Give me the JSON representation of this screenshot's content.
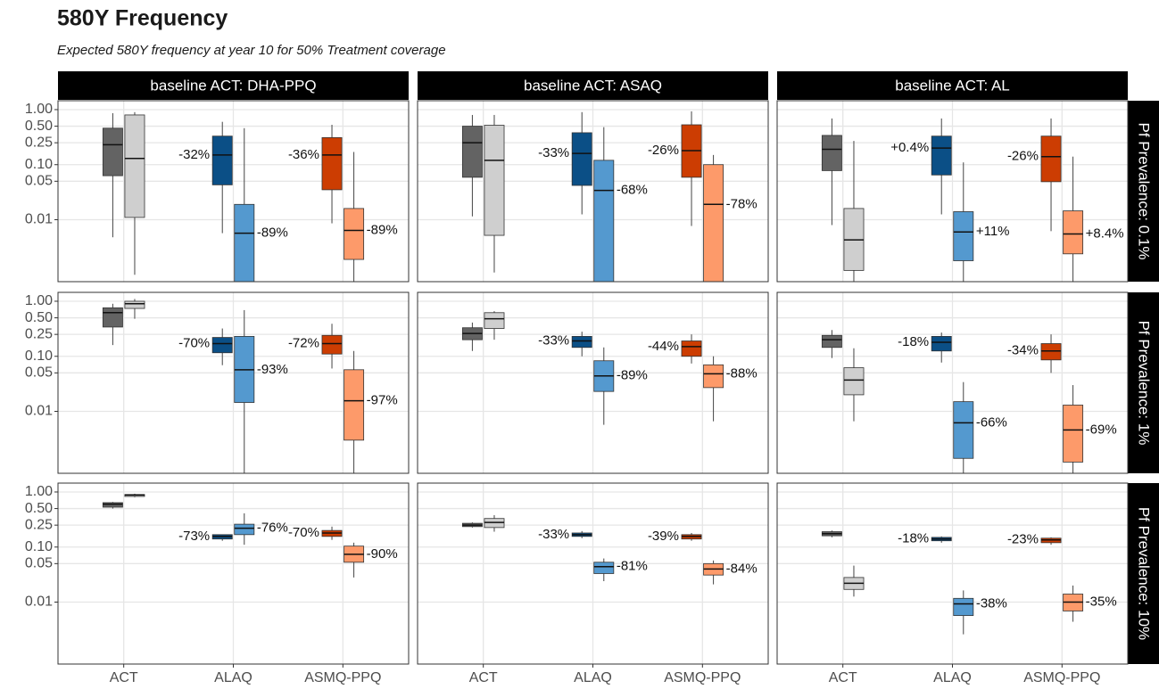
{
  "chart_data": {
    "type": "box",
    "title": "580Y Frequency",
    "subtitle": "Expected 580Y frequency at year 10 for 50% Treatment coverage",
    "column_facets": [
      "baseline ACT: DHA-PPQ",
      "baseline ACT: ASAQ",
      "baseline ACT: AL"
    ],
    "row_facets": [
      "Pf Prevalence: 0.1%",
      "Pf Prevalence: 1%",
      "Pf Prevalence: 10%"
    ],
    "categories": [
      "ACT",
      "ALAQ",
      "ASMQ-PPQ"
    ],
    "colors": [
      [
        "#636363",
        "#cfcfcf"
      ],
      [
        "#0b4f86",
        "#5499cf"
      ],
      [
        "#cc3d02",
        "#fd9a6a"
      ]
    ],
    "yscale": "log",
    "ylim": [
      0.00075,
      1.45
    ],
    "yticks": [
      {
        "value": 1,
        "label": "1.00"
      },
      {
        "value": 0.5,
        "label": "0.50"
      },
      0.25,
      {
        "value": 0.1,
        "label": "0.10"
      },
      0.05,
      0.01
    ],
    "grid": true,
    "panels": [
      [
        {
          "low": 0.0048,
          "q1": 0.063,
          "median": 0.23,
          "q3": 0.46,
          "high": 0.86
        },
        {
          "low": 0.001,
          "q1": 0.011,
          "median": 0.13,
          "q3": 0.8,
          "high": 0.9
        },
        {
          "low": 0.0057,
          "q1": 0.043,
          "median": 0.15,
          "q3": 0.33,
          "high": 0.6,
          "label": "-32%"
        },
        {
          "low": 0.0003,
          "q1": 0.0005,
          "median": 0.0057,
          "q3": 0.019,
          "high": 0.46,
          "label": "-89%"
        },
        {
          "low": 0.0086,
          "q1": 0.035,
          "median": 0.15,
          "q3": 0.31,
          "high": 0.53,
          "label": "-36%"
        },
        {
          "low": 0.0005,
          "q1": 0.0019,
          "median": 0.0064,
          "q3": 0.016,
          "high": 0.17,
          "label": "-89%"
        }
      ],
      [
        {
          "low": 0.0115,
          "q1": 0.059,
          "median": 0.25,
          "q3": 0.5,
          "high": 0.8
        },
        {
          "low": 0.0011,
          "q1": 0.0052,
          "median": 0.12,
          "q3": 0.52,
          "high": 0.8
        },
        {
          "low": 0.0125,
          "q1": 0.042,
          "median": 0.16,
          "q3": 0.38,
          "high": 0.9,
          "label": "-33%"
        },
        {
          "low": 0.0003,
          "q1": 0.0005,
          "median": 0.034,
          "q3": 0.12,
          "high": 0.48,
          "label": "-68%"
        },
        {
          "low": 0.0077,
          "q1": 0.059,
          "median": 0.18,
          "q3": 0.53,
          "high": 0.93,
          "label": "-26%"
        },
        {
          "low": 0.0003,
          "q1": 0.0005,
          "median": 0.019,
          "q3": 0.1,
          "high": 0.15,
          "label": "-78%"
        }
      ],
      [
        {
          "low": 0.008,
          "q1": 0.078,
          "median": 0.19,
          "q3": 0.34,
          "high": 0.69
        },
        {
          "low": 0.0005,
          "q1": 0.0012,
          "median": 0.0043,
          "q3": 0.016,
          "high": 0.27
        },
        {
          "low": 0.0125,
          "q1": 0.065,
          "median": 0.2,
          "q3": 0.33,
          "high": 0.69,
          "label": "+0.4%"
        },
        {
          "low": 0.0005,
          "q1": 0.0018,
          "median": 0.006,
          "q3": 0.014,
          "high": 0.11,
          "label": "+11%"
        },
        {
          "low": 0.0062,
          "q1": 0.049,
          "median": 0.14,
          "q3": 0.33,
          "high": 0.69,
          "label": "-26%"
        },
        {
          "low": 0.0005,
          "q1": 0.0024,
          "median": 0.0055,
          "q3": 0.0145,
          "high": 0.14,
          "label": "+8.4%"
        }
      ],
      [
        {
          "low": 0.16,
          "q1": 0.34,
          "median": 0.62,
          "q3": 0.76,
          "high": 0.9
        },
        {
          "low": 0.48,
          "q1": 0.74,
          "median": 0.9,
          "q3": 1.0,
          "high": 1.1
        },
        {
          "low": 0.069,
          "q1": 0.116,
          "median": 0.17,
          "q3": 0.22,
          "high": 0.32,
          "label": "-70%"
        },
        {
          "low": 0.0005,
          "q1": 0.0145,
          "median": 0.057,
          "q3": 0.23,
          "high": 0.69,
          "label": "-93%"
        },
        {
          "low": 0.06,
          "q1": 0.11,
          "median": 0.17,
          "q3": 0.24,
          "high": 0.39,
          "label": "-72%"
        },
        {
          "low": 0.0005,
          "q1": 0.003,
          "median": 0.0156,
          "q3": 0.057,
          "high": 0.125,
          "label": "-97%"
        }
      ],
      [
        {
          "low": 0.125,
          "q1": 0.2,
          "median": 0.26,
          "q3": 0.33,
          "high": 0.41
        },
        {
          "low": 0.2,
          "q1": 0.32,
          "median": 0.48,
          "q3": 0.62,
          "high": 0.66
        },
        {
          "low": 0.1,
          "q1": 0.145,
          "median": 0.19,
          "q3": 0.23,
          "high": 0.28,
          "label": "-33%"
        },
        {
          "low": 0.0057,
          "q1": 0.023,
          "median": 0.044,
          "q3": 0.083,
          "high": 0.145,
          "label": "-89%"
        },
        {
          "low": 0.074,
          "q1": 0.1,
          "median": 0.15,
          "q3": 0.19,
          "high": 0.25,
          "label": "-44%"
        },
        {
          "low": 0.0066,
          "q1": 0.027,
          "median": 0.048,
          "q3": 0.07,
          "high": 0.1,
          "label": "-88%"
        }
      ],
      [
        {
          "low": 0.093,
          "q1": 0.145,
          "median": 0.2,
          "q3": 0.24,
          "high": 0.3
        },
        {
          "low": 0.0066,
          "q1": 0.02,
          "median": 0.037,
          "q3": 0.062,
          "high": 0.14
        },
        {
          "low": 0.077,
          "q1": 0.125,
          "median": 0.18,
          "q3": 0.23,
          "high": 0.27,
          "label": "-18%"
        },
        {
          "low": 0.0005,
          "q1": 0.0014,
          "median": 0.0062,
          "q3": 0.015,
          "high": 0.034,
          "label": "-66%"
        },
        {
          "low": 0.05,
          "q1": 0.086,
          "median": 0.125,
          "q3": 0.17,
          "high": 0.25,
          "label": "-34%"
        },
        {
          "low": 0.0005,
          "q1": 0.0012,
          "median": 0.0046,
          "q3": 0.013,
          "high": 0.03,
          "label": "-69%"
        }
      ],
      [
        {
          "low": 0.5,
          "q1": 0.53,
          "median": 0.6,
          "q3": 0.64,
          "high": 0.66
        },
        {
          "low": 0.8,
          "q1": 0.83,
          "median": 0.88,
          "q3": 0.9,
          "high": 0.93
        },
        {
          "low": 0.13,
          "q1": 0.14,
          "median": 0.156,
          "q3": 0.168,
          "high": 0.17,
          "label": "-73%"
        },
        {
          "low": 0.11,
          "q1": 0.168,
          "median": 0.22,
          "q3": 0.26,
          "high": 0.41,
          "label": "-76%"
        },
        {
          "low": 0.135,
          "q1": 0.156,
          "median": 0.18,
          "q3": 0.2,
          "high": 0.235,
          "label": "-70%"
        },
        {
          "low": 0.028,
          "q1": 0.053,
          "median": 0.074,
          "q3": 0.104,
          "high": 0.12,
          "label": "-90%"
        }
      ],
      [
        {
          "low": 0.226,
          "q1": 0.235,
          "median": 0.25,
          "q3": 0.27,
          "high": 0.28
        },
        {
          "low": 0.19,
          "q1": 0.226,
          "median": 0.28,
          "q3": 0.33,
          "high": 0.38
        },
        {
          "low": 0.145,
          "q1": 0.156,
          "median": 0.168,
          "q3": 0.18,
          "high": 0.195,
          "label": "-33%"
        },
        {
          "low": 0.024,
          "q1": 0.033,
          "median": 0.044,
          "q3": 0.053,
          "high": 0.062,
          "label": "-81%"
        },
        {
          "low": 0.13,
          "q1": 0.14,
          "median": 0.156,
          "q3": 0.168,
          "high": 0.18,
          "label": "-39%"
        },
        {
          "low": 0.021,
          "q1": 0.031,
          "median": 0.04,
          "q3": 0.05,
          "high": 0.057,
          "label": "-84%"
        }
      ],
      [
        {
          "low": 0.15,
          "q1": 0.16,
          "median": 0.175,
          "q3": 0.19,
          "high": 0.2
        },
        {
          "low": 0.0126,
          "q1": 0.017,
          "median": 0.022,
          "q3": 0.028,
          "high": 0.046
        },
        {
          "low": 0.12,
          "q1": 0.13,
          "median": 0.14,
          "q3": 0.15,
          "high": 0.156,
          "label": "-18%"
        },
        {
          "low": 0.0026,
          "q1": 0.0057,
          "median": 0.0093,
          "q3": 0.0117,
          "high": 0.0163,
          "label": "-38%"
        },
        {
          "low": 0.11,
          "q1": 0.12,
          "median": 0.135,
          "q3": 0.145,
          "high": 0.15,
          "label": "-23%"
        },
        {
          "low": 0.0044,
          "q1": 0.0069,
          "median": 0.01,
          "q3": 0.014,
          "high": 0.02,
          "label": "-35%"
        }
      ]
    ]
  }
}
